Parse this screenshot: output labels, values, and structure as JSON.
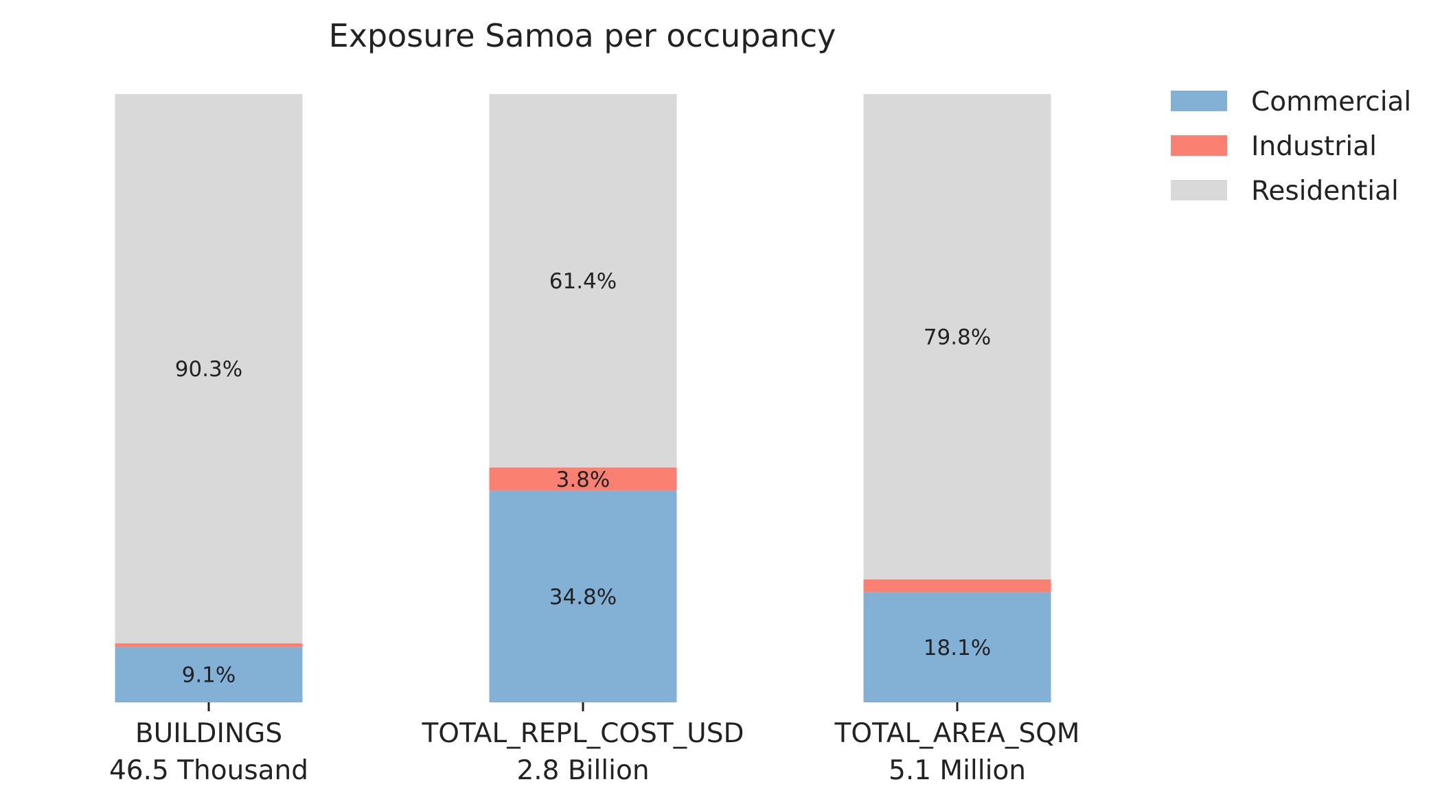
{
  "chart_data": {
    "type": "bar",
    "stacked": true,
    "normalized_percent": true,
    "title": "Exposure Samoa per occupancy",
    "categories": [
      "BUILDINGS",
      "TOTAL_REPL_COST_USD",
      "TOTAL_AREA_SQM"
    ],
    "category_totals": [
      "46.5 Thousand",
      "2.8 Billion",
      "5.1 Million"
    ],
    "ylim": [
      0,
      100
    ],
    "grid": false,
    "legend_position": "top-right",
    "series": [
      {
        "name": "Commercial",
        "color": "#82b1d5",
        "values": [
          9.1,
          34.8,
          18.1
        ],
        "labels": [
          "9.1%",
          "34.8%",
          "18.1%"
        ]
      },
      {
        "name": "Industrial",
        "color": "#fa8072",
        "values": [
          0.6,
          3.8,
          2.1
        ],
        "labels": [
          "",
          "3.8%",
          ""
        ]
      },
      {
        "name": "Residential",
        "color": "#d9d9d9",
        "values": [
          90.3,
          61.4,
          79.8
        ],
        "labels": [
          "90.3%",
          "61.4%",
          "79.8%"
        ]
      }
    ]
  }
}
